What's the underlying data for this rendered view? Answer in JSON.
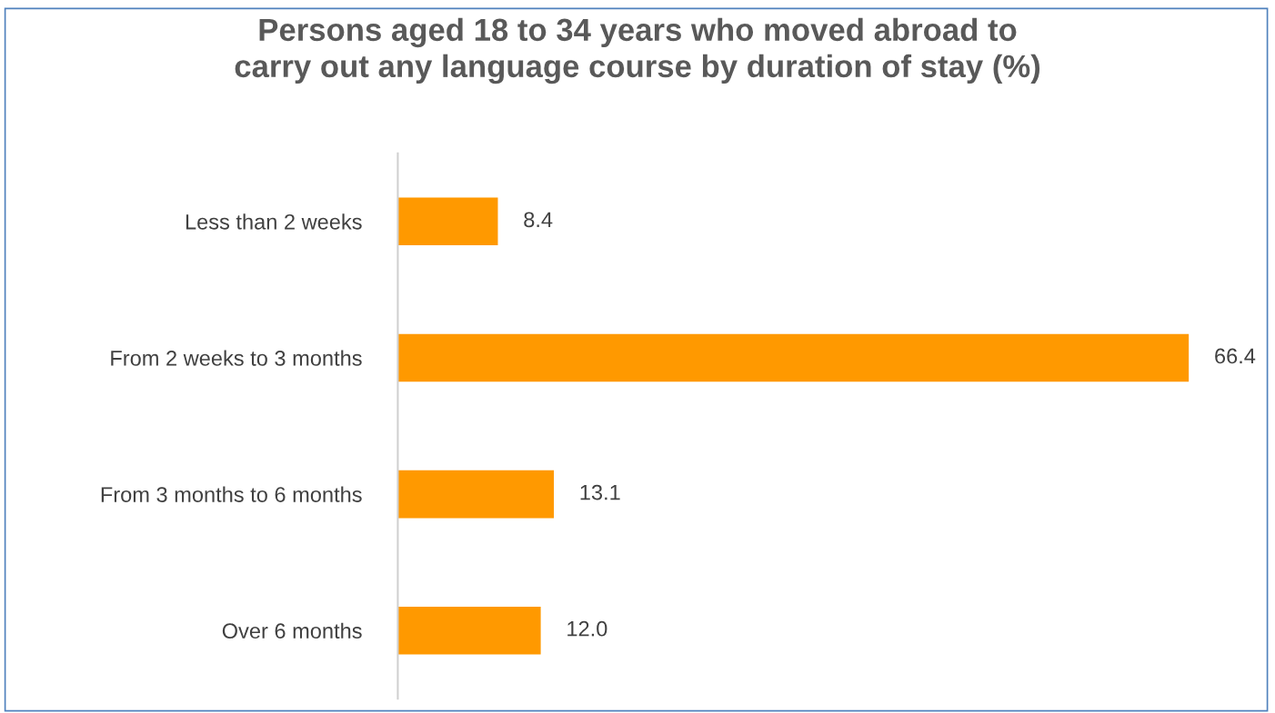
{
  "chart_data": {
    "type": "bar",
    "orientation": "horizontal",
    "title": "Persons aged 18 to 34 years who moved abroad to\ncarry out any language course by duration of stay (%)",
    "categories": [
      "Less than 2 weeks",
      "From 2 weeks to 3 months",
      "From 3 months to 6 months",
      "Over 6 months"
    ],
    "values": [
      8.4,
      66.4,
      13.1,
      12.0
    ],
    "value_labels": [
      "8.4",
      "66.4",
      "13.1",
      "12.0"
    ],
    "color": "#ff9900",
    "grid": false,
    "legend": false
  }
}
